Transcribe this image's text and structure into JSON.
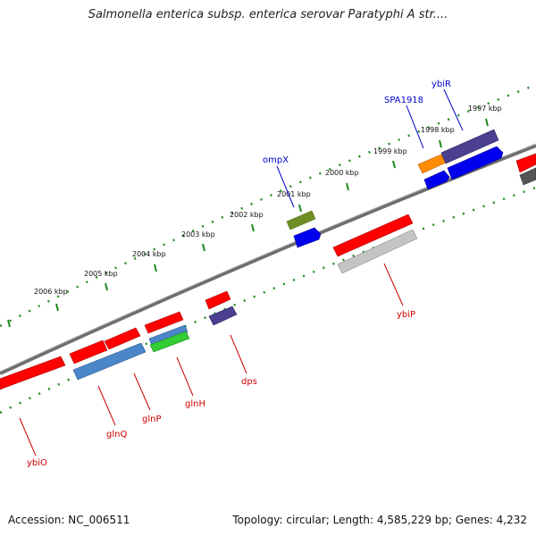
{
  "title": "Salmonella enterica subsp. enterica serovar Paratyphi A str....",
  "footer": {
    "accession": "Accession: NC_006511",
    "summary": "Topology: circular; Length: 4,585,229 bp; Genes: 4,232"
  },
  "colors": {
    "backbone": "#7a7a7a",
    "ticks": "#007a00",
    "forward_label": "#0000cc",
    "reverse_label": "#cc0000"
  },
  "kbp_labels": [
    "2006 kbp",
    "2005 kbp",
    "2004 kbp",
    "2003 kbp",
    "2002 kbp",
    "2001 kbp",
    "2000 kbp",
    "1999 kbp",
    "1998 kbp",
    "1997 kbp"
  ],
  "genes": {
    "ompX": "ompX",
    "SPA1918": "SPA1918",
    "ybiR": "ybiR",
    "ybiP": "ybiP",
    "dps": "dps",
    "glnH": "glnH",
    "glnP": "glnP",
    "glnQ": "glnQ",
    "ybiO": "ybiO"
  }
}
